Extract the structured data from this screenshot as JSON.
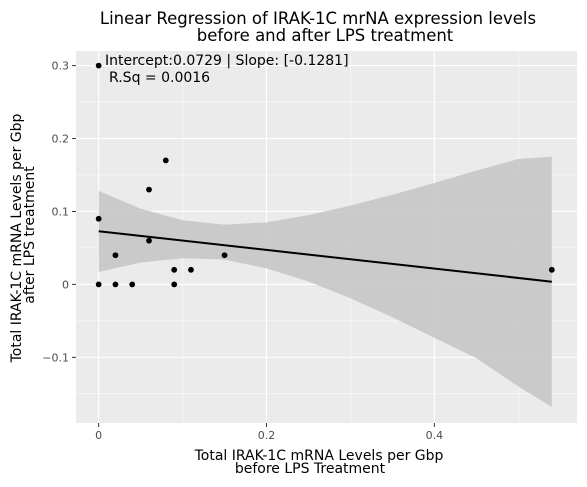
{
  "chart_data": {
    "type": "scatter",
    "title": "Linear Regression of IRAK-1C mrNA expression levels",
    "subtitle": "before and after LPS treatment",
    "xlabel_line1": "Total IRAK-1C mRNA Levels per Gbp",
    "xlabel_line2": "before LPS Treatment",
    "ylabel_line1": "Total IRAK-1C mRNA Levels per Gbp",
    "ylabel_line2": "after LPS treatment",
    "annotation_line1": "Intercept:0.0729 | Slope: [-0.1281]",
    "annotation_line2": "R.Sq = 0.0016",
    "xlim": [
      -0.027,
      0.57
    ],
    "ylim": [
      -0.19,
      0.32
    ],
    "x_ticks": [
      0,
      0.2,
      0.4
    ],
    "x_tick_labels": [
      "0",
      "0.2",
      "0.4"
    ],
    "y_ticks": [
      -0.1,
      0,
      0.1,
      0.2,
      0.3
    ],
    "y_tick_labels": [
      "−0.1",
      "0",
      "0.1",
      "0.2",
      "0.3"
    ],
    "grid": true,
    "points": [
      {
        "x": 0.0,
        "y": 0.3
      },
      {
        "x": 0.0,
        "y": 0.09
      },
      {
        "x": 0.0,
        "y": 0.0
      },
      {
        "x": 0.02,
        "y": 0.04
      },
      {
        "x": 0.02,
        "y": 0.0
      },
      {
        "x": 0.04,
        "y": 0.0
      },
      {
        "x": 0.06,
        "y": 0.13
      },
      {
        "x": 0.06,
        "y": 0.06
      },
      {
        "x": 0.08,
        "y": 0.17
      },
      {
        "x": 0.09,
        "y": 0.02
      },
      {
        "x": 0.09,
        "y": 0.0
      },
      {
        "x": 0.11,
        "y": 0.02
      },
      {
        "x": 0.15,
        "y": 0.04
      },
      {
        "x": 0.54,
        "y": 0.02
      }
    ],
    "regression": {
      "intercept": 0.0729,
      "slope": -0.1281,
      "x_range": [
        0.0,
        0.54
      ]
    },
    "confidence_band": {
      "x": [
        0.0,
        0.05,
        0.1,
        0.15,
        0.2,
        0.25,
        0.3,
        0.35,
        0.4,
        0.45,
        0.5,
        0.54
      ],
      "upper": [
        0.128,
        0.104,
        0.088,
        0.082,
        0.085,
        0.095,
        0.108,
        0.123,
        0.139,
        0.156,
        0.172,
        0.175
      ],
      "lower": [
        0.017,
        0.03,
        0.036,
        0.034,
        0.022,
        0.004,
        -0.019,
        -0.045,
        -0.073,
        -0.101,
        -0.14,
        -0.168
      ]
    },
    "colors": {
      "panel": "#ebebeb",
      "grid_major": "#ffffff",
      "band": "#c4c4c4",
      "line": "#000000",
      "point": "#000000"
    }
  }
}
